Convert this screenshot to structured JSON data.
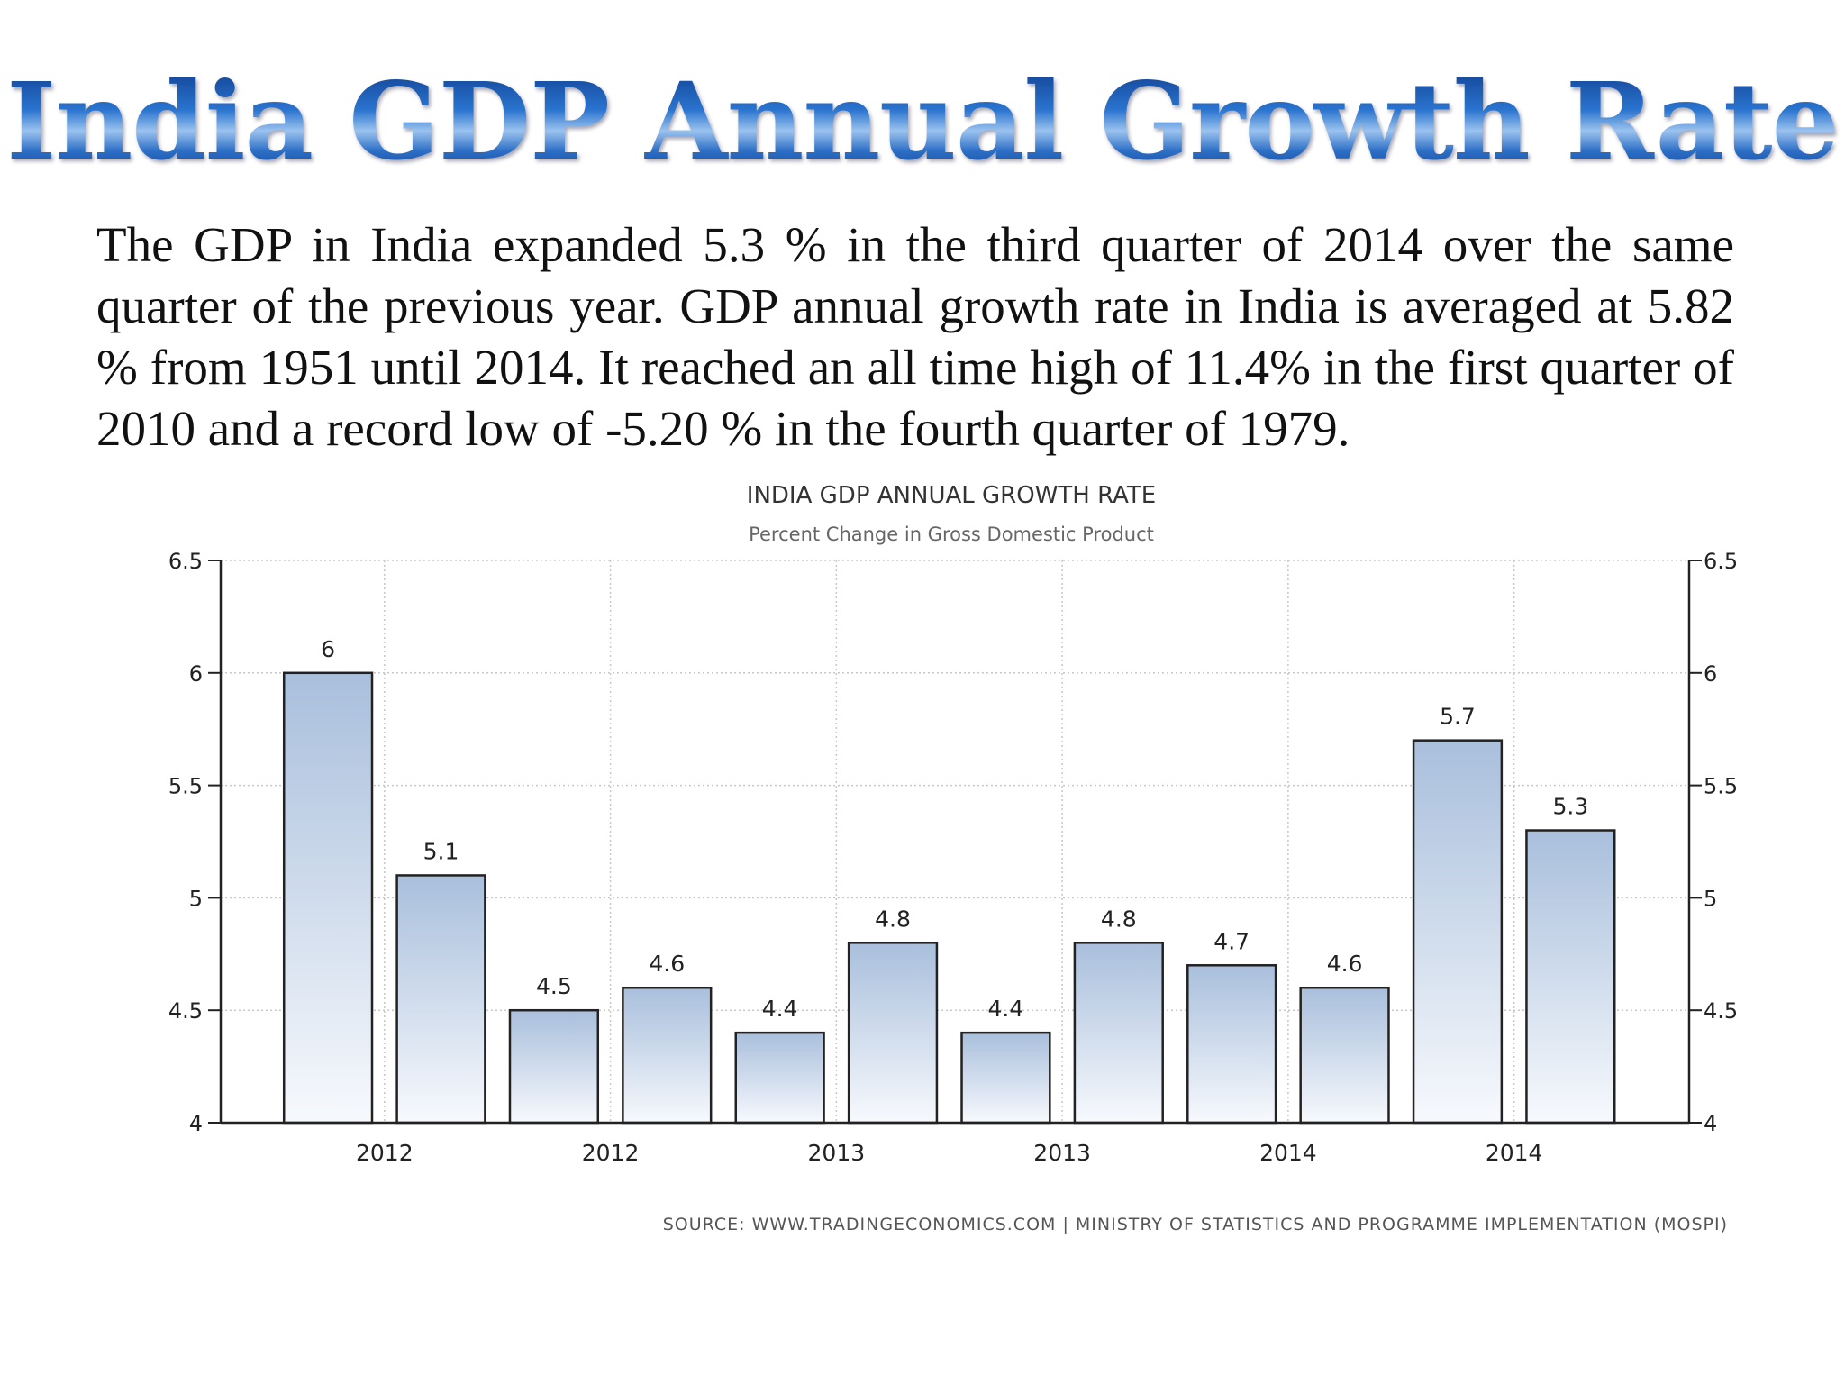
{
  "slide": {
    "title": "India GDP Annual Growth Rate",
    "text": "The GDP in India expanded 5.3 % in the third quarter of 2014 over the same quarter of the previous year. GDP annual growth rate in India is averaged at 5.82 % from 1951 until 2014. It reached an all time high of 11.4% in the first quarter of 2010 and a record low of -5.20 % in the fourth quarter of 1979."
  },
  "chart_data": {
    "type": "bar",
    "title": "INDIA GDP ANNUAL GROWTH RATE",
    "subtitle": "Percent Change in Gross Domestic Product",
    "source": "SOURCE: WWW.TRADINGECONOMICS.COM | MINISTRY OF STATISTICS AND PROGRAMME IMPLEMENTATION (MOSPI)",
    "values": [
      6.0,
      5.1,
      4.5,
      4.6,
      4.4,
      4.8,
      4.4,
      4.8,
      4.7,
      4.6,
      5.7,
      5.3
    ],
    "value_labels": [
      "6",
      "5.1",
      "4.5",
      "4.6",
      "4.4",
      "4.8",
      "4.4",
      "4.8",
      "4.7",
      "4.6",
      "5.7",
      "5.3"
    ],
    "x_tick_labels": [
      "2012",
      "2012",
      "2013",
      "2013",
      "2014",
      "2014"
    ],
    "y_ticks": [
      "6.5",
      "6",
      "5.5",
      "5",
      "4.5",
      "4"
    ],
    "ylim": [
      4,
      6.5
    ],
    "secondary_y_axis": true,
    "grid": true,
    "bar_gradient": [
      "#a9bfdc",
      "#f7f9fd"
    ],
    "bar_border_color": "#222222"
  }
}
